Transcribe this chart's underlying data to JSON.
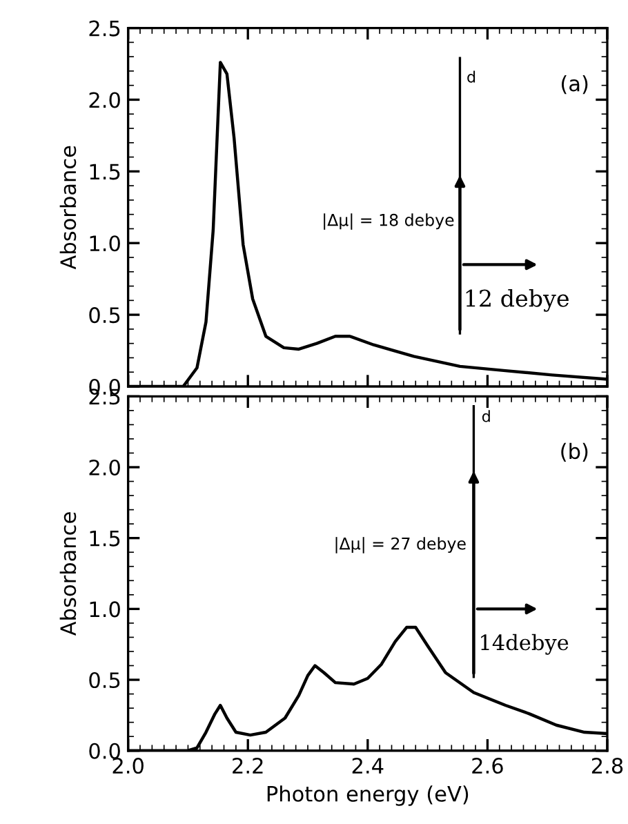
{
  "chart_data": [
    {
      "type": "line",
      "ylabel": "Absorbance",
      "xlim": [
        2.0,
        2.8
      ],
      "ylim": [
        0.0,
        2.5
      ],
      "xticks": [
        2.0,
        2.2,
        2.4,
        2.6,
        2.8
      ],
      "yticks": [
        {
          "value": 0.0,
          "label": "0.0"
        },
        {
          "value": 0.5,
          "label": "0.5"
        },
        {
          "value": 1.0,
          "label": "1.0"
        },
        {
          "value": 1.5,
          "label": "1.5"
        },
        {
          "value": 2.0,
          "label": "2.0"
        },
        {
          "value": 2.5,
          "label": "2.5"
        }
      ],
      "tick_labels": "y",
      "grid": false,
      "legend": false,
      "marker": "none",
      "line_style": "solid",
      "color": "#000000",
      "x": [
        2.0,
        2.092,
        2.115,
        2.13,
        2.142,
        2.154,
        2.165,
        2.177,
        2.192,
        2.208,
        2.23,
        2.26,
        2.285,
        2.315,
        2.346,
        2.37,
        2.41,
        2.477,
        2.554,
        2.63,
        2.708,
        2.8
      ],
      "values": [
        0.0,
        0.0,
        0.13,
        0.45,
        1.09,
        2.26,
        2.18,
        1.73,
        0.99,
        0.61,
        0.35,
        0.27,
        0.26,
        0.3,
        0.35,
        0.35,
        0.29,
        0.21,
        0.14,
        0.11,
        0.08,
        0.05
      ],
      "annotations": [
        "(a)",
        "|Δμ| = 18 debye",
        "12 debye",
        "d"
      ]
    },
    {
      "type": "line",
      "xlabel": "Photon energy (eV)",
      "ylabel": "Absorbance",
      "xlim": [
        2.0,
        2.8
      ],
      "ylim": [
        0.0,
        2.5
      ],
      "xticks": [
        {
          "value": 2.0,
          "label": "2.0"
        },
        {
          "value": 2.2,
          "label": "2.2"
        },
        {
          "value": 2.4,
          "label": "2.4"
        },
        {
          "value": 2.6,
          "label": "2.6"
        },
        {
          "value": 2.8,
          "label": "2.8"
        }
      ],
      "yticks": [
        {
          "value": 0.0,
          "label": "0.0"
        },
        {
          "value": 0.5,
          "label": "0.5"
        },
        {
          "value": 1.0,
          "label": "1.0"
        },
        {
          "value": 1.5,
          "label": "1.5"
        },
        {
          "value": 2.0,
          "label": "2.0"
        },
        {
          "value": 2.5,
          "label": "2.5"
        }
      ],
      "grid": false,
      "legend": false,
      "marker": "none",
      "line_style": "solid",
      "color": "#000000",
      "x": [
        2.0,
        2.1,
        2.115,
        2.13,
        2.145,
        2.154,
        2.165,
        2.18,
        2.204,
        2.23,
        2.262,
        2.285,
        2.3,
        2.312,
        2.327,
        2.346,
        2.377,
        2.4,
        2.423,
        2.446,
        2.465,
        2.48,
        2.5,
        2.53,
        2.577,
        2.63,
        2.67,
        2.715,
        2.762,
        2.8
      ],
      "values": [
        0.0,
        0.0,
        0.02,
        0.13,
        0.26,
        0.32,
        0.23,
        0.13,
        0.11,
        0.13,
        0.23,
        0.39,
        0.53,
        0.6,
        0.55,
        0.48,
        0.47,
        0.51,
        0.61,
        0.77,
        0.87,
        0.87,
        0.74,
        0.55,
        0.41,
        0.32,
        0.26,
        0.18,
        0.13,
        0.12
      ],
      "annotations": [
        "(b)",
        "|Δμ| = 27 debye",
        "14debye",
        "d"
      ]
    }
  ]
}
